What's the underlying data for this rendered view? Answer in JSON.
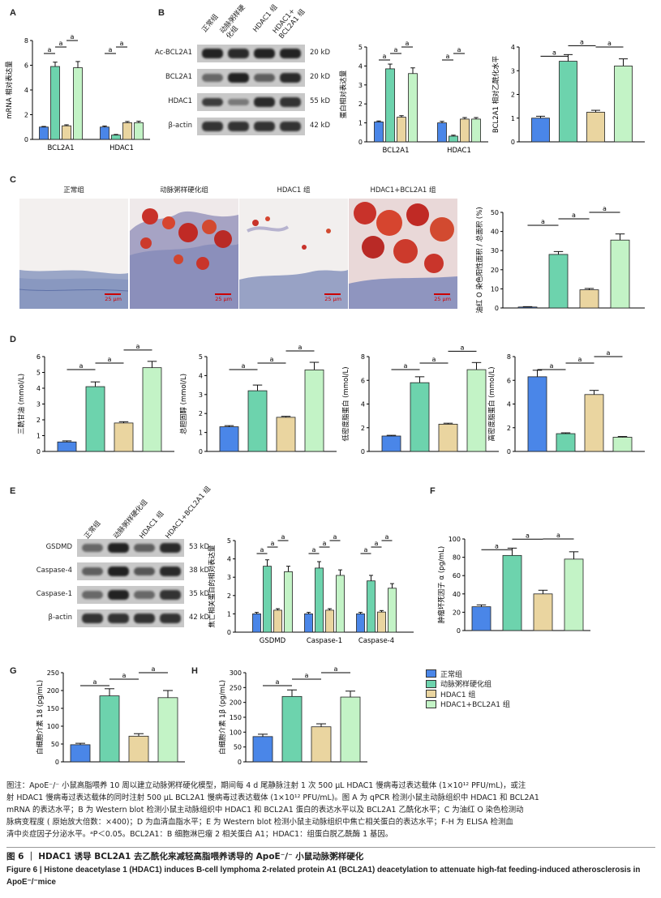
{
  "colors": {
    "normal": "#4a86e8",
    "as": "#6dd3ad",
    "hdac1": "#ead5a0",
    "combo": "#c3f3c6"
  },
  "panels": [
    "A",
    "B",
    "C",
    "D",
    "E",
    "F",
    "G",
    "H"
  ],
  "groups": [
    "正常组",
    "动脉粥样硬化组",
    "HDAC1 组",
    "HDAC1+BCL2A1 组"
  ],
  "blot_B": {
    "lanes": [
      "正常组",
      "动脉粥样硬\n化组",
      "HDAC1 组",
      "HDAC1+\nBCL2A1 组"
    ],
    "rows": [
      {
        "label": "Ac-BCL2A1",
        "kd": "20 kD",
        "bands": [
          0.95,
          0.9,
          0.95,
          0.95
        ]
      },
      {
        "label": "BCL2A1",
        "kd": "20 kD",
        "bands": [
          0.55,
          0.95,
          0.6,
          0.9
        ]
      },
      {
        "label": "HDAC1",
        "kd": "55 kD",
        "bands": [
          0.8,
          0.45,
          0.9,
          0.85
        ]
      },
      {
        "label": "β-actin",
        "kd": "42 kD",
        "bands": [
          0.85,
          0.85,
          0.85,
          0.85
        ]
      }
    ]
  },
  "blot_E": {
    "lanes": [
      "正常组",
      "动脉粥样硬化组",
      "HDAC1 组",
      "HDAC1+BCL2A1 组"
    ],
    "rows": [
      {
        "label": "GSDMD",
        "kd": "53 kD",
        "bands": [
          0.55,
          0.95,
          0.6,
          0.9
        ]
      },
      {
        "label": "Caspase-4",
        "kd": "38 kD",
        "bands": [
          0.6,
          0.95,
          0.65,
          0.9
        ]
      },
      {
        "label": "Caspase-1",
        "kd": "35 kD",
        "bands": [
          0.55,
          0.95,
          0.55,
          0.85
        ]
      },
      {
        "label": "β-actin",
        "kd": "42 kD",
        "bands": [
          0.85,
          0.85,
          0.85,
          0.85
        ]
      }
    ]
  },
  "micro_C": {
    "labels": [
      "正常组",
      "动脉粥样硬化组",
      "HDAC1 组",
      "HDAC1+BCL2A1 组"
    ],
    "scale": "25 μm"
  },
  "sig": "a",
  "chart_data": [
    {
      "id": "A",
      "type": "bar",
      "ylabel": "mRNA 相对表达量",
      "categories": [
        "BCL2A1",
        "HDAC1"
      ],
      "ylim": [
        0,
        8
      ],
      "yticks": [
        0,
        2,
        4,
        6,
        8
      ],
      "series": [
        {
          "name": "正常组",
          "values": [
            1.0,
            1.0
          ],
          "err": [
            0.05,
            0.08
          ]
        },
        {
          "name": "动脉粥样硬化组",
          "values": [
            5.9,
            0.35
          ],
          "err": [
            0.35,
            0.05
          ]
        },
        {
          "name": "HDAC1 组",
          "values": [
            1.1,
            1.35
          ],
          "err": [
            0.08,
            0.1
          ]
        },
        {
          "name": "HDAC1+BCL2A1 组",
          "values": [
            5.8,
            1.35
          ],
          "err": [
            0.5,
            0.12
          ]
        }
      ],
      "brackets": [
        [
          0,
          0,
          0,
          1
        ],
        [
          0,
          1,
          0,
          2
        ],
        [
          0,
          2,
          0,
          3
        ],
        [
          1,
          0,
          1,
          1
        ],
        [
          1,
          1,
          1,
          2
        ]
      ]
    },
    {
      "id": "B1",
      "type": "bar",
      "ylabel": "蛋白相对表达量",
      "categories": [
        "BCL2A1",
        "HDAC1"
      ],
      "ylim": [
        0,
        5
      ],
      "yticks": [
        0,
        1,
        2,
        3,
        4,
        5
      ],
      "series": [
        {
          "name": "正常组",
          "values": [
            1.05,
            1.0
          ],
          "err": [
            0.05,
            0.08
          ]
        },
        {
          "name": "动脉粥样硬化组",
          "values": [
            3.85,
            0.3
          ],
          "err": [
            0.25,
            0.05
          ]
        },
        {
          "name": "HDAC1 组",
          "values": [
            1.3,
            1.2
          ],
          "err": [
            0.08,
            0.08
          ]
        },
        {
          "name": "HDAC1+BCL2A1 组",
          "values": [
            3.6,
            1.2
          ],
          "err": [
            0.3,
            0.08
          ]
        }
      ],
      "brackets": [
        [
          0,
          0,
          0,
          1
        ],
        [
          0,
          1,
          0,
          2
        ],
        [
          0,
          2,
          0,
          3
        ],
        [
          1,
          0,
          1,
          1
        ],
        [
          1,
          1,
          1,
          2
        ]
      ]
    },
    {
      "id": "B2",
      "type": "bar",
      "ylabel": "BCL2A1 相对乙酰化水平",
      "categories": [
        ""
      ],
      "ylim": [
        0,
        4
      ],
      "yticks": [
        0,
        1,
        2,
        3,
        4
      ],
      "series": [
        {
          "name": "正常组",
          "values": [
            1.0
          ],
          "err": [
            0.08
          ]
        },
        {
          "name": "动脉粥样硬化组",
          "values": [
            3.4
          ],
          "err": [
            0.28
          ]
        },
        {
          "name": "HDAC1 组",
          "values": [
            1.25
          ],
          "err": [
            0.08
          ]
        },
        {
          "name": "HDAC1+BCL2A1 组",
          "values": [
            3.2
          ],
          "err": [
            0.3
          ]
        }
      ],
      "brackets": [
        [
          0,
          0,
          0,
          1
        ],
        [
          0,
          1,
          0,
          2
        ],
        [
          0,
          2,
          0,
          3
        ]
      ]
    },
    {
      "id": "C",
      "type": "bar",
      "ylabel": "油红 O 染色阳性面积 / 总面积 (%)",
      "categories": [
        ""
      ],
      "ylim": [
        0,
        50
      ],
      "yticks": [
        0,
        10,
        20,
        30,
        40,
        50
      ],
      "series": [
        {
          "name": "正常组",
          "values": [
            0.5
          ],
          "err": [
            0.2
          ]
        },
        {
          "name": "动脉粥样硬化组",
          "values": [
            28
          ],
          "err": [
            1.5
          ]
        },
        {
          "name": "HDAC1 组",
          "values": [
            9.5
          ],
          "err": [
            0.7
          ]
        },
        {
          "name": "HDAC1+BCL2A1 组",
          "values": [
            35.5
          ],
          "err": [
            3.2
          ]
        }
      ],
      "brackets": [
        [
          0,
          0,
          0,
          1
        ],
        [
          0,
          1,
          0,
          2
        ],
        [
          0,
          2,
          0,
          3
        ]
      ]
    },
    {
      "id": "D1",
      "type": "bar",
      "ylabel": "三酰甘油 (mmol/L)",
      "categories": [
        ""
      ],
      "ylim": [
        0,
        6
      ],
      "yticks": [
        0,
        1,
        2,
        3,
        4,
        5,
        6
      ],
      "series": [
        {
          "name": "正常组",
          "values": [
            0.6
          ],
          "err": [
            0.07
          ]
        },
        {
          "name": "动脉粥样硬化组",
          "values": [
            4.1
          ],
          "err": [
            0.3
          ]
        },
        {
          "name": "HDAC1 组",
          "values": [
            1.8
          ],
          "err": [
            0.08
          ]
        },
        {
          "name": "HDAC1+BCL2A1 组",
          "values": [
            5.3
          ],
          "err": [
            0.4
          ]
        }
      ],
      "brackets": [
        [
          0,
          0,
          0,
          1
        ],
        [
          0,
          1,
          0,
          2
        ],
        [
          0,
          2,
          0,
          3
        ]
      ]
    },
    {
      "id": "D2",
      "type": "bar",
      "ylabel": "总胆固醇 (mmol/L)",
      "categories": [
        ""
      ],
      "ylim": [
        0,
        5
      ],
      "yticks": [
        0,
        1,
        2,
        3,
        4,
        5
      ],
      "series": [
        {
          "name": "正常组",
          "values": [
            1.3
          ],
          "err": [
            0.06
          ]
        },
        {
          "name": "动脉粥样硬化组",
          "values": [
            3.2
          ],
          "err": [
            0.3
          ]
        },
        {
          "name": "HDAC1 组",
          "values": [
            1.8
          ],
          "err": [
            0.05
          ]
        },
        {
          "name": "HDAC1+BCL2A1 组",
          "values": [
            4.3
          ],
          "err": [
            0.4
          ]
        }
      ],
      "brackets": [
        [
          0,
          0,
          0,
          1
        ],
        [
          0,
          1,
          0,
          2
        ],
        [
          0,
          2,
          0,
          3
        ]
      ]
    },
    {
      "id": "D3",
      "type": "bar",
      "ylabel": "低密度脂蛋白 (mmol/L)",
      "categories": [
        ""
      ],
      "ylim": [
        0,
        8
      ],
      "yticks": [
        0,
        2,
        4,
        6,
        8
      ],
      "series": [
        {
          "name": "正常组",
          "values": [
            1.3
          ],
          "err": [
            0.06
          ]
        },
        {
          "name": "动脉粥样硬化组",
          "values": [
            5.8
          ],
          "err": [
            0.5
          ]
        },
        {
          "name": "HDAC1 组",
          "values": [
            2.3
          ],
          "err": [
            0.08
          ]
        },
        {
          "name": "HDAC1+BCL2A1 组",
          "values": [
            6.9
          ],
          "err": [
            0.6
          ]
        }
      ],
      "brackets": [
        [
          0,
          0,
          0,
          1
        ],
        [
          0,
          1,
          0,
          2
        ],
        [
          0,
          2,
          0,
          3
        ]
      ]
    },
    {
      "id": "D4",
      "type": "bar",
      "ylabel": "高密度脂蛋白 (mmol/L)",
      "categories": [
        ""
      ],
      "ylim": [
        0,
        8
      ],
      "yticks": [
        0,
        2,
        4,
        6,
        8
      ],
      "series": [
        {
          "name": "正常组",
          "values": [
            6.3
          ],
          "err": [
            0.55
          ]
        },
        {
          "name": "动脉粥样硬化组",
          "values": [
            1.5
          ],
          "err": [
            0.07
          ]
        },
        {
          "name": "HDAC1 组",
          "values": [
            4.8
          ],
          "err": [
            0.35
          ]
        },
        {
          "name": "HDAC1+BCL2A1 组",
          "values": [
            1.2
          ],
          "err": [
            0.06
          ]
        }
      ],
      "brackets": [
        [
          0,
          0,
          0,
          1
        ],
        [
          0,
          1,
          0,
          2
        ],
        [
          0,
          2,
          0,
          3
        ]
      ]
    },
    {
      "id": "E",
      "type": "bar",
      "ylabel": "焦亡相关蛋白的相对表达量",
      "categories": [
        "GSDMD",
        "Caspase-1",
        "Caspase-4"
      ],
      "ylim": [
        0,
        5
      ],
      "yticks": [
        0,
        1,
        2,
        3,
        4,
        5
      ],
      "series": [
        {
          "name": "正常组",
          "values": [
            1.0,
            1.0,
            1.0
          ],
          "err": [
            0.08,
            0.08,
            0.08
          ]
        },
        {
          "name": "动脉粥样硬化组",
          "values": [
            3.6,
            3.5,
            2.8
          ],
          "err": [
            0.35,
            0.35,
            0.3
          ]
        },
        {
          "name": "HDAC1 组",
          "values": [
            1.2,
            1.2,
            1.1
          ],
          "err": [
            0.08,
            0.08,
            0.08
          ]
        },
        {
          "name": "HDAC1+BCL2A1 组",
          "values": [
            3.3,
            3.1,
            2.4
          ],
          "err": [
            0.3,
            0.3,
            0.25
          ]
        }
      ],
      "brackets": [
        [
          0,
          0,
          0,
          1
        ],
        [
          0,
          1,
          0,
          2
        ],
        [
          0,
          2,
          0,
          3
        ],
        [
          1,
          0,
          1,
          1
        ],
        [
          1,
          1,
          1,
          2
        ],
        [
          1,
          2,
          1,
          3
        ],
        [
          2,
          0,
          2,
          1
        ],
        [
          2,
          1,
          2,
          2
        ],
        [
          2,
          2,
          2,
          3
        ]
      ]
    },
    {
      "id": "F",
      "type": "bar",
      "ylabel": "肿瘤坏死因子 α (pg/mL)",
      "categories": [
        ""
      ],
      "ylim": [
        0,
        100
      ],
      "yticks": [
        0,
        20,
        40,
        60,
        80,
        100
      ],
      "series": [
        {
          "name": "正常组",
          "values": [
            26
          ],
          "err": [
            2
          ]
        },
        {
          "name": "动脉粥样硬化组",
          "values": [
            82
          ],
          "err": [
            8
          ]
        },
        {
          "name": "HDAC1 组",
          "values": [
            40
          ],
          "err": [
            4
          ]
        },
        {
          "name": "HDAC1+BCL2A1 组",
          "values": [
            78
          ],
          "err": [
            8
          ]
        }
      ],
      "brackets": [
        [
          0,
          0,
          0,
          1
        ],
        [
          0,
          1,
          0,
          2
        ],
        [
          0,
          2,
          0,
          3
        ]
      ]
    },
    {
      "id": "G",
      "type": "bar",
      "ylabel": "白细胞介素 18 (pg/mL)",
      "categories": [
        ""
      ],
      "ylim": [
        0,
        250
      ],
      "yticks": [
        0,
        50,
        100,
        150,
        200,
        250
      ],
      "series": [
        {
          "name": "正常组",
          "values": [
            48
          ],
          "err": [
            4
          ]
        },
        {
          "name": "动脉粥样硬化组",
          "values": [
            185
          ],
          "err": [
            20
          ]
        },
        {
          "name": "HDAC1 组",
          "values": [
            72
          ],
          "err": [
            7
          ]
        },
        {
          "name": "HDAC1+BCL2A1 组",
          "values": [
            180
          ],
          "err": [
            20
          ]
        }
      ],
      "brackets": [
        [
          0,
          0,
          0,
          1
        ],
        [
          0,
          1,
          0,
          2
        ],
        [
          0,
          2,
          0,
          3
        ]
      ]
    },
    {
      "id": "H",
      "type": "bar",
      "ylabel": "白细胞介素 1β (pg/mL)",
      "categories": [
        ""
      ],
      "ylim": [
        0,
        300
      ],
      "yticks": [
        0,
        50,
        100,
        150,
        200,
        250,
        300
      ],
      "series": [
        {
          "name": "正常组",
          "values": [
            85
          ],
          "err": [
            8
          ]
        },
        {
          "name": "动脉粥样硬化组",
          "values": [
            220
          ],
          "err": [
            22
          ]
        },
        {
          "name": "HDAC1 组",
          "values": [
            118
          ],
          "err": [
            10
          ]
        },
        {
          "name": "HDAC1+BCL2A1 组",
          "values": [
            218
          ],
          "err": [
            20
          ]
        }
      ],
      "brackets": [
        [
          0,
          0,
          0,
          1
        ],
        [
          0,
          1,
          0,
          2
        ],
        [
          0,
          2,
          0,
          3
        ]
      ]
    }
  ],
  "caption": {
    "lines": [
      "图注：ApoE⁻/⁻ 小鼠高脂喂养 10 周以建立动脉粥样硬化模型，期间每 4 d 尾静脉注射 1 次 500 μL HDAC1 慢病毒过表达载体 (1×10¹² PFU/mL)，或注",
      "射 HDAC1 慢病毒过表达载体的同时注射 500 μL BCL2A1 慢病毒过表达载体 (1×10¹² PFU/mL)。图 A 为 qPCR 检测小鼠主动脉组织中 HDAC1 和 BCL2A1",
      "mRNA 的表达水平；B 为 Western blot 检测小鼠主动脉组织中 HDAC1 和 BCL2A1 蛋白的表达水平以及 BCL2A1 乙酰化水平；C 为油红 O 染色检测动",
      "脉病变程度 ( 原始放大倍数：×400)；D 为血清血脂水平；E 为 Western blot 检测小鼠主动脉组织中焦亡相关蛋白的表达水平；F-H 为 ELISA 检测血",
      "清中炎症因子分泌水平。ᵃP＜0.05。BCL2A1：B 细胞淋巴瘤 2 相关蛋白 A1；HDAC1：组蛋白脱乙酰酶 1 基因。"
    ],
    "title_cn": "图 6 ｜ HDAC1 诱导 BCL2A1 去乙酰化来减轻高脂喂养诱导的 ApoE⁻/⁻ 小鼠动脉粥样硬化",
    "title_en": "Figure 6 | Histone deacetylase 1 (HDAC1) induces B-cell lymphoma 2-related protein A1 (BCL2A1) deacetylation to attenuate high-fat feeding-induced atherosclerosis in ApoE⁻/⁻mice"
  }
}
